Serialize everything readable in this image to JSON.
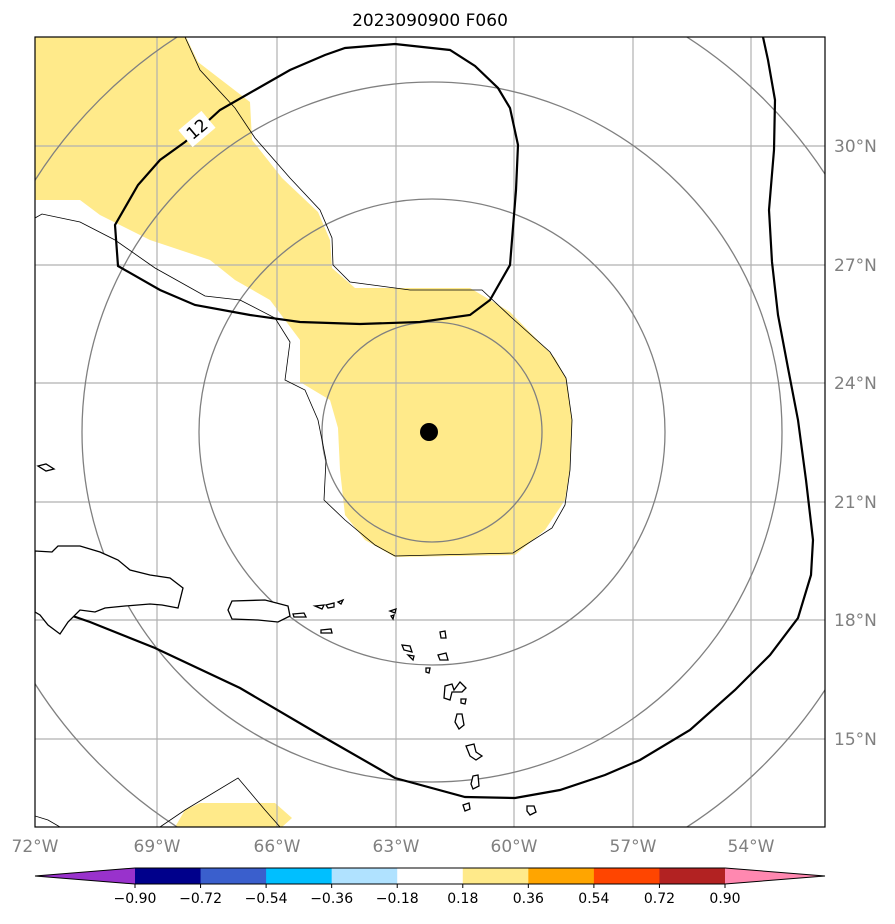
{
  "title": "2023090900 F060",
  "map": {
    "lon_labels": [
      "72°W",
      "69°W",
      "66°W",
      "63°W",
      "60°W",
      "57°W",
      "54°W"
    ],
    "lat_labels": [
      "30°N",
      "27°N",
      "24°N",
      "21°N",
      "18°N",
      "15°N"
    ],
    "contour_label": "12",
    "storm_center": {
      "lon": -62.2,
      "lat": 22.8
    }
  },
  "colorbar": {
    "colors": [
      "#9932cc",
      "#00008b",
      "#3a5fcd",
      "#00bfff",
      "#b0e2ff",
      "#ffffff",
      "#ffea8a",
      "#ffa500",
      "#ff4500",
      "#b22222",
      "#ff88b0"
    ],
    "tick_labels": [
      "−0.90",
      "−0.72",
      "−0.54",
      "−0.36",
      "−0.18",
      "0.18",
      "0.36",
      "0.54",
      "0.72",
      "0.90"
    ]
  },
  "colors": {
    "shading": "#ffea8a",
    "rings": "#808080",
    "grid": "#b0b0b0"
  }
}
